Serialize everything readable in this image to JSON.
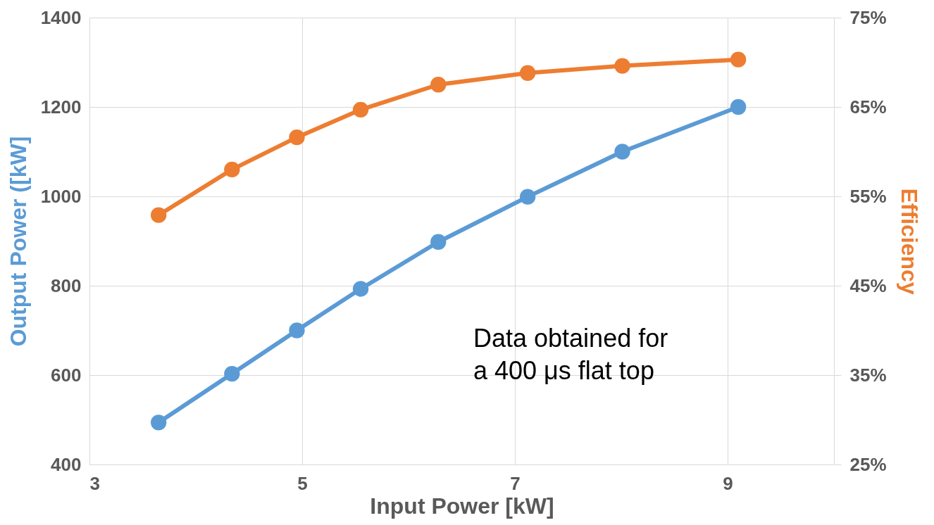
{
  "chart_data": {
    "type": "line",
    "xlabel": "Input Power [kW]",
    "ylabel": "Output Power ([kW]",
    "y2label": "Efficiency",
    "x": [
      3.65,
      4.34,
      4.95,
      5.55,
      6.28,
      7.12,
      8.01,
      9.1
    ],
    "series": [
      {
        "color": "#5b9bd5",
        "values": [
          494,
          603,
          700,
          793,
          898,
          999,
          1100,
          1200
        ]
      },
      {
        "color": "#ed7d31",
        "axis": "y2",
        "values": [
          52.9,
          58.0,
          61.6,
          64.7,
          67.5,
          68.8,
          69.6,
          70.3
        ]
      }
    ],
    "xlim": [
      3,
      10
    ],
    "xticks": [
      3,
      5,
      7,
      9
    ],
    "ylim": [
      400,
      1400
    ],
    "yticks": [
      400,
      600,
      800,
      1000,
      1200,
      1400
    ],
    "y2lim": [
      25,
      75
    ],
    "y2ticks": [
      {
        "value": 25,
        "label": "25%"
      },
      {
        "value": 35,
        "label": "35%"
      },
      {
        "value": 45,
        "label": "45%"
      },
      {
        "value": 55,
        "label": "55%"
      },
      {
        "value": 65,
        "label": "65%"
      },
      {
        "value": 75,
        "label": "75%"
      }
    ],
    "annotations": [
      "Data obtained for\na 400 μs flat top"
    ],
    "grid": true,
    "marker": "circle",
    "line_style": "solid"
  }
}
